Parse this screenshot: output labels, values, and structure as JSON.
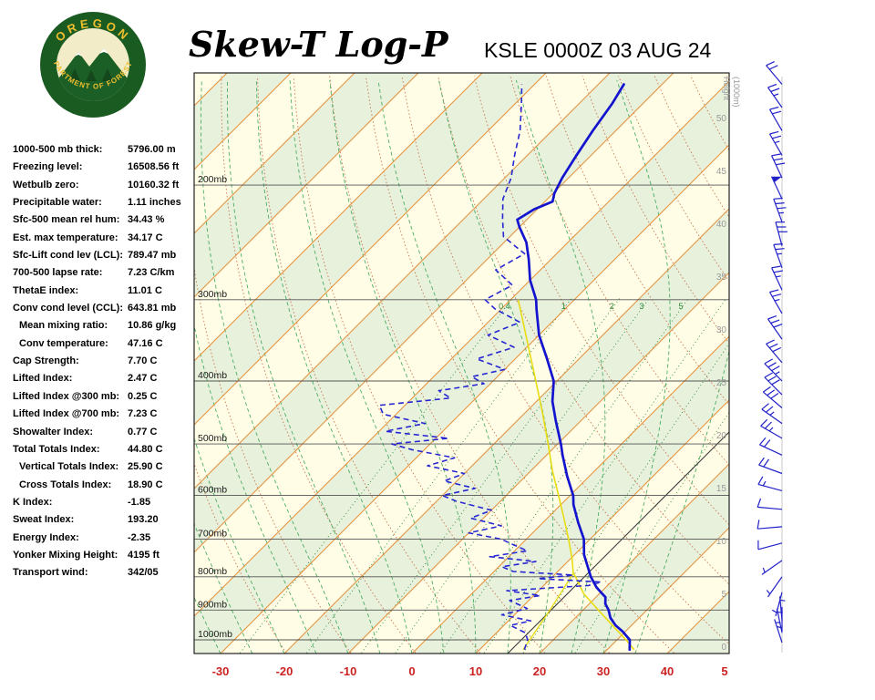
{
  "header": {
    "title": "Skew-T Log-P",
    "station": "KSLE 0000Z 03 AUG 24"
  },
  "logo": {
    "top_text": "OREGON",
    "bottom_text": "DEPARTMENT OF FORESTRY"
  },
  "stats": {
    "items": [
      {
        "label": "1000-500 mb thick:",
        "value": "5796.00 m",
        "indent": false
      },
      {
        "label": "Freezing level:",
        "value": "16508.56 ft",
        "indent": false
      },
      {
        "label": "Wetbulb zero:",
        "value": "10160.32 ft",
        "indent": false
      },
      {
        "label": "Precipitable water:",
        "value": "1.11 inches",
        "indent": false
      },
      {
        "label": "Sfc-500 mean rel hum:",
        "value": "34.43 %",
        "indent": false
      },
      {
        "label": "Est. max temperature:",
        "value": "34.17 C",
        "indent": false
      },
      {
        "label": "Sfc-Lift cond lev (LCL):",
        "value": "789.47 mb",
        "indent": false
      },
      {
        "label": "700-500 lapse rate:",
        "value": "7.23 C/km",
        "indent": false
      },
      {
        "label": "ThetaE index:",
        "value": "11.01 C",
        "indent": false
      },
      {
        "label": "Conv cond level (CCL):",
        "value": "643.81 mb",
        "indent": false
      },
      {
        "label": "Mean mixing ratio:",
        "value": "10.86 g/kg",
        "indent": true
      },
      {
        "label": "Conv temperature:",
        "value": "47.16 C",
        "indent": true
      },
      {
        "label": "Cap Strength:",
        "value": "7.70 C",
        "indent": false
      },
      {
        "label": "Lifted Index:",
        "value": "2.47 C",
        "indent": false
      },
      {
        "label": "Lifted Index @300 mb:",
        "value": "0.25 C",
        "indent": false
      },
      {
        "label": "Lifted Index @700 mb:",
        "value": "7.23 C",
        "indent": false
      },
      {
        "label": "Showalter Index:",
        "value": "0.77 C",
        "indent": false
      },
      {
        "label": "Total Totals Index:",
        "value": "44.80 C",
        "indent": false
      },
      {
        "label": "Vertical Totals Index:",
        "value": "25.90 C",
        "indent": true
      },
      {
        "label": "Cross Totals Index:",
        "value": "18.90 C",
        "indent": true
      },
      {
        "label": "K Index:",
        "value": "-1.85",
        "indent": false
      },
      {
        "label": "Sweat Index:",
        "value": "193.20",
        "indent": false
      },
      {
        "label": "Energy Index:",
        "value": "-2.35",
        "indent": false
      },
      {
        "label": "Yonker Mixing Height:",
        "value": "4195 ft",
        "indent": false
      },
      {
        "label": "Transport wind:",
        "value": "342/05",
        "indent": false
      }
    ]
  },
  "chart_data": {
    "type": "skewt",
    "title": "Skew-T Log-P",
    "station": "KSLE 0000Z 03 AUG 24",
    "pressure_ticks_mb": [
      200,
      300,
      400,
      500,
      600,
      700,
      800,
      900,
      1000
    ],
    "pressure_label_suffix": "mb",
    "height_ticks": [
      0,
      5,
      10,
      15,
      20,
      25,
      30,
      35,
      40,
      45,
      50
    ],
    "height_axis_label_1": "Height",
    "height_axis_label_2": "(1000m)",
    "temp_ticks_c": [
      -30,
      -20,
      -10,
      0,
      10,
      20,
      30,
      40
    ],
    "temp_tick_partial": "5",
    "isotherm_step_c": 10,
    "dry_adiabats_K": {
      "min": 250,
      "max": 440,
      "step": 10
    },
    "moist_adiabats_C": {
      "min": -35,
      "max": 35,
      "step": 5
    },
    "mixing_ratio_lines_gkg": [
      0.4,
      1,
      2,
      3,
      5,
      8,
      12,
      20
    ],
    "reference_isotherm_c": 15,
    "temperature_profile": [
      {
        "p": 1035,
        "t": 33.5
      },
      {
        "p": 1000,
        "t": 32
      },
      {
        "p": 970,
        "t": 29.5
      },
      {
        "p": 950,
        "t": 27.5
      },
      {
        "p": 925,
        "t": 25.5
      },
      {
        "p": 900,
        "t": 24
      },
      {
        "p": 880,
        "t": 22.5
      },
      {
        "p": 860,
        "t": 21.5
      },
      {
        "p": 850,
        "t": 20.5
      },
      {
        "p": 830,
        "t": 18.5
      },
      {
        "p": 800,
        "t": 16
      },
      {
        "p": 770,
        "t": 13.8
      },
      {
        "p": 740,
        "t": 11.5
      },
      {
        "p": 700,
        "t": 9
      },
      {
        "p": 660,
        "t": 5.5
      },
      {
        "p": 620,
        "t": 2
      },
      {
        "p": 600,
        "t": 0.5
      },
      {
        "p": 560,
        "t": -3.5
      },
      {
        "p": 520,
        "t": -7.5
      },
      {
        "p": 500,
        "t": -9.5
      },
      {
        "p": 460,
        "t": -14
      },
      {
        "p": 430,
        "t": -17.5
      },
      {
        "p": 400,
        "t": -20.5
      },
      {
        "p": 370,
        "t": -25
      },
      {
        "p": 340,
        "t": -30
      },
      {
        "p": 310,
        "t": -34.5
      },
      {
        "p": 300,
        "t": -36
      },
      {
        "p": 280,
        "t": -40
      },
      {
        "p": 260,
        "t": -43.5
      },
      {
        "p": 245,
        "t": -46.5
      },
      {
        "p": 232,
        "t": -50
      },
      {
        "p": 226,
        "t": -51.5
      },
      {
        "p": 218,
        "t": -50.5
      },
      {
        "p": 212,
        "t": -48.8
      },
      {
        "p": 206,
        "t": -49.8
      },
      {
        "p": 195,
        "t": -51
      },
      {
        "p": 180,
        "t": -52.3
      },
      {
        "p": 165,
        "t": -53.6
      },
      {
        "p": 150,
        "t": -54.8
      },
      {
        "p": 140,
        "t": -56
      }
    ],
    "dewpoint_profile": [
      {
        "p": 1035,
        "td": 17
      },
      {
        "p": 1000,
        "td": 16
      },
      {
        "p": 975,
        "td": 14.5
      },
      {
        "p": 950,
        "td": 11
      },
      {
        "p": 935,
        "td": 13.5
      },
      {
        "p": 915,
        "td": 8
      },
      {
        "p": 895,
        "td": 11
      },
      {
        "p": 870,
        "td": 7
      },
      {
        "p": 855,
        "td": 11
      },
      {
        "p": 840,
        "td": 5
      },
      {
        "p": 825,
        "td": 17
      },
      {
        "p": 815,
        "td": 18.5
      },
      {
        "p": 805,
        "td": 8
      },
      {
        "p": 795,
        "td": 13
      },
      {
        "p": 785,
        "td": 3
      },
      {
        "p": 772,
        "td": 0.5
      },
      {
        "p": 758,
        "td": 5
      },
      {
        "p": 745,
        "td": -3
      },
      {
        "p": 730,
        "td": 2
      },
      {
        "p": 715,
        "td": -1
      },
      {
        "p": 700,
        "td": -4
      },
      {
        "p": 685,
        "td": -10
      },
      {
        "p": 668,
        "td": -6
      },
      {
        "p": 650,
        "td": -12
      },
      {
        "p": 632,
        "td": -10
      },
      {
        "p": 612,
        "td": -17
      },
      {
        "p": 600,
        "td": -20
      },
      {
        "p": 585,
        "td": -16
      },
      {
        "p": 570,
        "td": -22
      },
      {
        "p": 555,
        "td": -20
      },
      {
        "p": 540,
        "td": -27
      },
      {
        "p": 525,
        "td": -24
      },
      {
        "p": 510,
        "td": -32
      },
      {
        "p": 500,
        "td": -36
      },
      {
        "p": 490,
        "td": -28
      },
      {
        "p": 478,
        "td": -39
      },
      {
        "p": 465,
        "td": -34
      },
      {
        "p": 450,
        "td": -42
      },
      {
        "p": 436,
        "td": -44
      },
      {
        "p": 425,
        "td": -34
      },
      {
        "p": 414,
        "td": -37
      },
      {
        "p": 404,
        "td": -31
      },
      {
        "p": 394,
        "td": -34
      },
      {
        "p": 384,
        "td": -30
      },
      {
        "p": 370,
        "td": -36
      },
      {
        "p": 355,
        "td": -32
      },
      {
        "p": 340,
        "td": -38
      },
      {
        "p": 325,
        "td": -35
      },
      {
        "p": 310,
        "td": -41
      },
      {
        "p": 300,
        "td": -44
      },
      {
        "p": 285,
        "td": -42
      },
      {
        "p": 270,
        "td": -47
      },
      {
        "p": 255,
        "td": -45
      },
      {
        "p": 240,
        "td": -51
      },
      {
        "p": 225,
        "td": -54
      },
      {
        "p": 210,
        "td": -57
      },
      {
        "p": 195,
        "td": -59
      },
      {
        "p": 180,
        "td": -62
      },
      {
        "p": 165,
        "td": -65
      },
      {
        "p": 150,
        "td": -69
      },
      {
        "p": 140,
        "td": -72
      }
    ],
    "parcel_trace": [
      {
        "p": 1035,
        "t": 34.2
      },
      {
        "p": 1000,
        "t": 31.4
      },
      {
        "p": 950,
        "t": 27
      },
      {
        "p": 900,
        "t": 22.4
      },
      {
        "p": 850,
        "t": 17.6
      },
      {
        "p": 800,
        "t": 13.6
      },
      {
        "p": 790,
        "t": 12.7
      },
      {
        "p": 750,
        "t": 10.2
      },
      {
        "p": 700,
        "t": 6.6
      },
      {
        "p": 650,
        "t": 2.6
      },
      {
        "p": 600,
        "t": -1.8
      },
      {
        "p": 550,
        "t": -6.6
      },
      {
        "p": 500,
        "t": -11.5
      },
      {
        "p": 450,
        "t": -17
      },
      {
        "p": 400,
        "t": -23.3
      },
      {
        "p": 350,
        "t": -30.5
      },
      {
        "p": 300,
        "t": -38.8
      }
    ],
    "surface_mixing_line": [
      {
        "p": 1035,
        "t": 16.8
      },
      {
        "p": 900,
        "t": 14.8
      },
      {
        "p": 790,
        "t": 12.7
      }
    ],
    "wind_barbs": [
      {
        "p": 140,
        "dir": 320,
        "spd": 20
      },
      {
        "p": 152,
        "dir": 325,
        "spd": 25
      },
      {
        "p": 165,
        "dir": 330,
        "spd": 20
      },
      {
        "p": 180,
        "dir": 330,
        "spd": 25
      },
      {
        "p": 195,
        "dir": 335,
        "spd": 30
      },
      {
        "p": 210,
        "dir": 335,
        "spd": 50
      },
      {
        "p": 228,
        "dir": 340,
        "spd": 35
      },
      {
        "p": 248,
        "dir": 345,
        "spd": 30
      },
      {
        "p": 268,
        "dir": 340,
        "spd": 25
      },
      {
        "p": 290,
        "dir": 335,
        "spd": 25
      },
      {
        "p": 315,
        "dir": 330,
        "spd": 25
      },
      {
        "p": 345,
        "dir": 325,
        "spd": 30
      },
      {
        "p": 375,
        "dir": 320,
        "spd": 30
      },
      {
        "p": 400,
        "dir": 315,
        "spd": 35
      },
      {
        "p": 420,
        "dir": 315,
        "spd": 30
      },
      {
        "p": 440,
        "dir": 310,
        "spd": 30
      },
      {
        "p": 465,
        "dir": 305,
        "spd": 25
      },
      {
        "p": 490,
        "dir": 300,
        "spd": 25
      },
      {
        "p": 520,
        "dir": 295,
        "spd": 20
      },
      {
        "p": 555,
        "dir": 290,
        "spd": 20
      },
      {
        "p": 590,
        "dir": 285,
        "spd": 15
      },
      {
        "p": 630,
        "dir": 275,
        "spd": 10
      },
      {
        "p": 670,
        "dir": 265,
        "spd": 10
      },
      {
        "p": 710,
        "dir": 255,
        "spd": 10
      },
      {
        "p": 755,
        "dir": 235,
        "spd": 5
      },
      {
        "p": 800,
        "dir": 215,
        "spd": 5
      },
      {
        "p": 845,
        "dir": 195,
        "spd": 5
      },
      {
        "p": 890,
        "dir": 180,
        "spd": 5
      },
      {
        "p": 935,
        "dir": 355,
        "spd": 5
      },
      {
        "p": 975,
        "dir": 348,
        "spd": 5
      },
      {
        "p": 1010,
        "dir": 342,
        "spd": 5
      }
    ],
    "colors": {
      "background": "#FFFDE6",
      "band": "#E8F1DC",
      "isotherm": "#E39440",
      "dry_adiabat": "#C06038",
      "moist_adiabat": "#2FA14F",
      "mixing_ratio": "#2E8B3A",
      "pressure_line": "#555555",
      "temperature": "#1414CE",
      "dewpoint": "#2626D2",
      "parcel": "#E8DC12",
      "wind": "#2121C8",
      "axis_red": "#CC2222",
      "height_axis": "#999999",
      "border": "#222222",
      "reference": "#333333"
    }
  }
}
